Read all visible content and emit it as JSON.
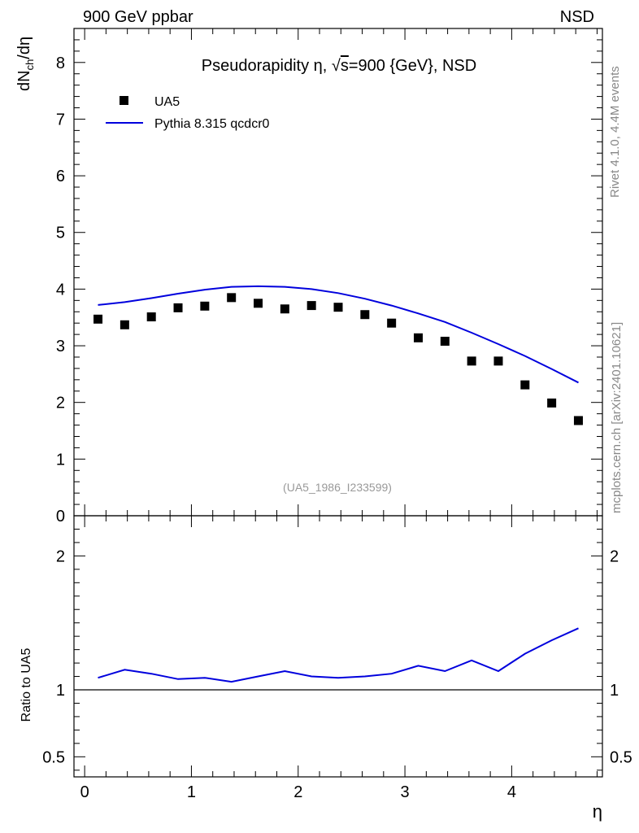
{
  "header": {
    "left_label": "900 GeV ppbar",
    "right_label": "NSD"
  },
  "side_labels": {
    "rivet": "Rivet 4.1.0,  4.4M events",
    "mcplots": "mcplots.cern.ch [arXiv:2401.10621]"
  },
  "chart_data": {
    "type": "scatter",
    "title_prefix": "Pseudorapidity η, ",
    "title_sqrt": "√",
    "title_s": "s",
    "title_suffix": "=900 {GeV}, NSD",
    "ylabel_main": "dN",
    "ylabel_sub": "ch",
    "ylabel_tail": "/dη",
    "xlabel": "η",
    "ratio_ylabel": "Ratio to UA5",
    "watermark": "(UA5_1986_I233599)",
    "xlim": [
      -0.1,
      4.85
    ],
    "ylim_main": [
      0,
      8.6
    ],
    "ylim_ratio": [
      0.35,
      2.3
    ],
    "x_ticks": [
      "0",
      "1",
      "2",
      "3",
      "4"
    ],
    "y_ticks_main": [
      "0",
      "1",
      "2",
      "3",
      "4",
      "5",
      "6",
      "7",
      "8"
    ],
    "y_ticks_ratio": [
      "0.5",
      "1",
      "2"
    ],
    "series": [
      {
        "name": "UA5",
        "kind": "markers",
        "color": "#000000",
        "x": [
          0.125,
          0.375,
          0.625,
          0.875,
          1.125,
          1.375,
          1.625,
          1.875,
          2.125,
          2.375,
          2.625,
          2.875,
          3.125,
          3.375,
          3.625,
          3.875,
          4.125,
          4.375,
          4.625
        ],
        "values": [
          3.47,
          3.37,
          3.51,
          3.67,
          3.7,
          3.85,
          3.75,
          3.65,
          3.71,
          3.68,
          3.55,
          3.4,
          3.14,
          3.08,
          2.73,
          2.73,
          2.31,
          1.99,
          1.68
        ]
      },
      {
        "name": "Pythia 8.315 qcdcr0",
        "kind": "line",
        "color": "#0000dd",
        "x": [
          0.125,
          0.375,
          0.625,
          0.875,
          1.125,
          1.375,
          1.625,
          1.875,
          2.125,
          2.375,
          2.625,
          2.875,
          3.125,
          3.375,
          3.625,
          3.875,
          4.125,
          4.375,
          4.625
        ],
        "values": [
          3.72,
          3.77,
          3.84,
          3.92,
          3.99,
          4.04,
          4.05,
          4.04,
          4.0,
          3.93,
          3.83,
          3.71,
          3.57,
          3.42,
          3.23,
          3.03,
          2.82,
          2.59,
          2.35
        ],
        "ratio": [
          1.09,
          1.15,
          1.12,
          1.08,
          1.09,
          1.06,
          1.1,
          1.14,
          1.1,
          1.09,
          1.1,
          1.12,
          1.18,
          1.14,
          1.22,
          1.14,
          1.27,
          1.37,
          1.46
        ]
      }
    ],
    "legend_position": "top-left"
  }
}
